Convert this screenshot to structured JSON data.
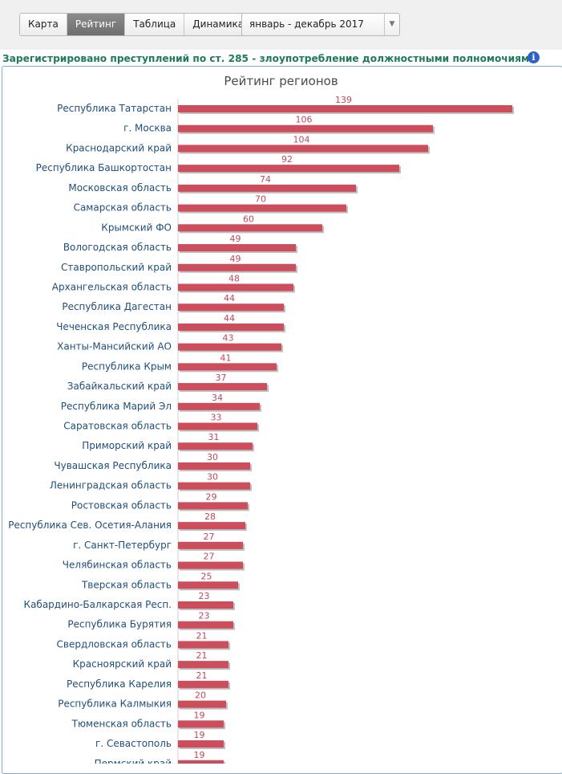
{
  "tabs": [
    {
      "label": "Карта",
      "active": false
    },
    {
      "label": "Рейтинг",
      "active": true
    },
    {
      "label": "Таблица",
      "active": false
    },
    {
      "label": "Динамика",
      "active": false
    }
  ],
  "period_select": {
    "value": "январь - декабрь 2017"
  },
  "heading": "Зарегистрировано преступлений по ст. 285 - злоупотребление должностными полномочиями",
  "colors": {
    "bar": "#cc4d5c",
    "heading": "#1e7a5a",
    "panel_border": "#7aaed3"
  },
  "chart_data": {
    "type": "bar",
    "orientation": "horizontal",
    "title": "Рейтинг регионов",
    "categories": [
      "Республика Татарстан",
      "г. Москва",
      "Краснодарский край",
      "Республика Башкортостан",
      "Московская область",
      "Самарская область",
      "Крымский ФО",
      "Вологодская область",
      "Ставропольский край",
      "Архангельская область",
      "Республика Дагестан",
      "Чеченская Республика",
      "Ханты-Мансийский АО",
      "Республика Крым",
      "Забайкальский край",
      "Республика Марий Эл",
      "Саратовская область",
      "Приморский край",
      "Чувашская Республика",
      "Ленинградская область",
      "Ростовская область",
      "Республика Сев. Осетия-Алания",
      "г. Санкт-Петербург",
      "Челябинская область",
      "Тверская область",
      "Кабардино-Балкарская Респ.",
      "Республика Бурятия",
      "Свердловская область",
      "Красноярский край",
      "Республика Карелия",
      "Республика Калмыкия",
      "Тюменская область",
      "г. Севастополь",
      "Пермский край"
    ],
    "values": [
      139,
      106,
      104,
      92,
      74,
      70,
      60,
      49,
      49,
      48,
      44,
      44,
      43,
      41,
      37,
      34,
      33,
      31,
      30,
      30,
      29,
      28,
      27,
      27,
      25,
      23,
      23,
      21,
      21,
      21,
      20,
      19,
      19,
      19
    ],
    "grid": false,
    "legend": "none"
  }
}
